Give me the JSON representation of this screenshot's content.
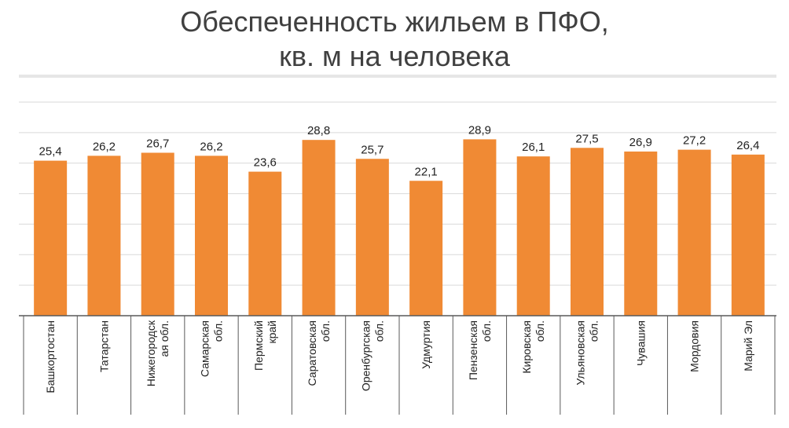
{
  "chart_data": {
    "type": "bar",
    "title_lines": [
      "Обеспеченность жильем в ПФО,",
      "кв. м на человека"
    ],
    "categories": [
      [
        "Башкортостан"
      ],
      [
        "Татарстан"
      ],
      [
        "Нижегородск",
        "ая обл."
      ],
      [
        "Самарская",
        "обл."
      ],
      [
        "Пермский",
        "край"
      ],
      [
        "Саратовская",
        "обл."
      ],
      [
        "Оренбургская",
        "обл."
      ],
      [
        "Удмуртия"
      ],
      [
        "Пензенская",
        "обл."
      ],
      [
        "Кировская",
        "обл."
      ],
      [
        "Ульяновская",
        "обл."
      ],
      [
        "Чувашия"
      ],
      [
        "Мордовия"
      ],
      [
        "Марий Эл"
      ]
    ],
    "values": [
      25.4,
      26.2,
      26.7,
      26.2,
      23.6,
      28.8,
      25.7,
      22.1,
      28.9,
      26.1,
      27.5,
      26.9,
      27.2,
      26.4
    ],
    "value_labels": [
      "25,4",
      "26,2",
      "26,7",
      "26,2",
      "23,6",
      "28,8",
      "25,7",
      "22,1",
      "28,9",
      "26,1",
      "27,5",
      "26,9",
      "27,2",
      "26,4"
    ],
    "ylim": [
      0,
      35
    ],
    "grid": true,
    "bar_color": "#f08a34",
    "grid_color": "#d9d9d9",
    "axis_color": "#595959"
  }
}
